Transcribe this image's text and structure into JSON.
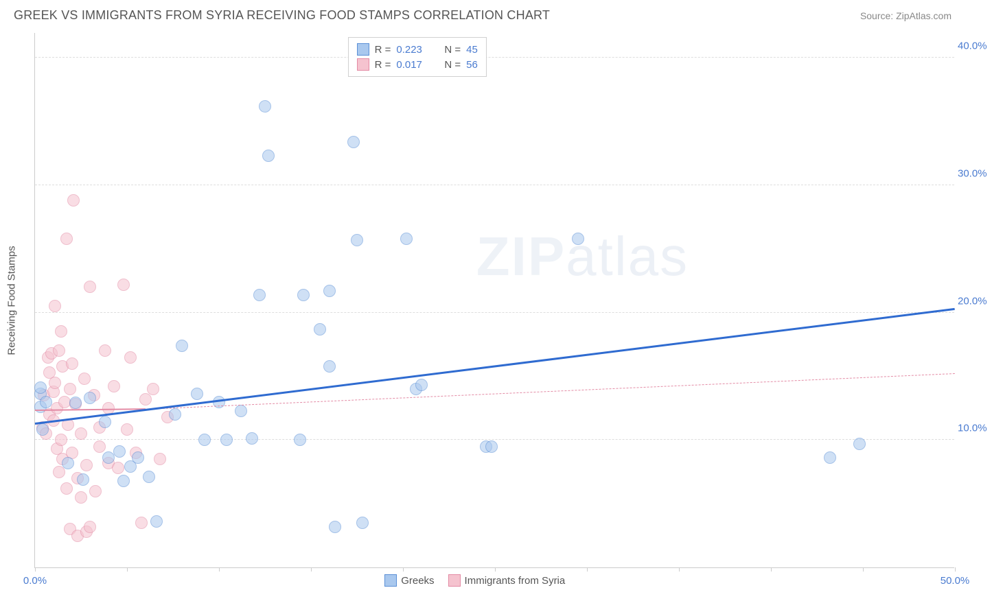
{
  "header": {
    "title": "GREEK VS IMMIGRANTS FROM SYRIA RECEIVING FOOD STAMPS CORRELATION CHART",
    "source_prefix": "Source: ",
    "source_name": "ZipAtlas.com"
  },
  "watermark": {
    "zip": "ZIP",
    "atlas": "atlas"
  },
  "chart": {
    "type": "scatter",
    "xlim": [
      0,
      50
    ],
    "ylim": [
      0,
      42
    ],
    "xtick_positions": [
      0,
      5,
      10,
      15,
      20,
      25,
      30,
      35,
      40,
      45,
      50
    ],
    "xtick_labels": {
      "0": "0.0%",
      "50": "50.0%"
    },
    "ytick_positions": [
      10,
      20,
      30,
      40
    ],
    "ytick_labels": {
      "10": "10.0%",
      "20": "20.0%",
      "30": "30.0%",
      "40": "40.0%"
    },
    "ylabel": "Receiving Food Stamps",
    "background_color": "#ffffff",
    "grid_color": "#dddddd",
    "axis_color": "#cccccc",
    "xtick_label_color": "#4a7bd0",
    "ytick_label_color": "#4a7bd0",
    "marker_radius": 9,
    "marker_opacity": 0.55,
    "series": [
      {
        "name": "Greeks",
        "color_fill": "#a9c8ee",
        "color_stroke": "#5a8fd6",
        "R": "0.223",
        "N": "45",
        "trend": {
          "x1": 0,
          "y1": 11.2,
          "x2": 50,
          "y2": 20.2,
          "width": 3,
          "dash": false,
          "color": "#2f6bd0",
          "extrap": {
            "x1": 50,
            "y1": 20.2,
            "x2": 50,
            "y2": 20.2
          }
        },
        "points": [
          [
            0.3,
            13.6
          ],
          [
            0.3,
            14.1
          ],
          [
            0.3,
            12.6
          ],
          [
            0.4,
            10.8
          ],
          [
            0.6,
            13.0
          ],
          [
            1.8,
            8.2
          ],
          [
            2.2,
            12.9
          ],
          [
            2.6,
            6.9
          ],
          [
            3.0,
            13.3
          ],
          [
            3.8,
            11.4
          ],
          [
            4.0,
            8.6
          ],
          [
            4.6,
            9.1
          ],
          [
            4.8,
            6.8
          ],
          [
            5.2,
            7.9
          ],
          [
            5.6,
            8.6
          ],
          [
            6.2,
            7.1
          ],
          [
            6.6,
            3.6
          ],
          [
            7.6,
            12.0
          ],
          [
            8.0,
            17.4
          ],
          [
            8.8,
            13.6
          ],
          [
            9.2,
            10.0
          ],
          [
            10.0,
            13.0
          ],
          [
            10.4,
            10.0
          ],
          [
            11.2,
            12.3
          ],
          [
            11.8,
            10.1
          ],
          [
            12.2,
            21.4
          ],
          [
            12.5,
            36.2
          ],
          [
            12.7,
            32.3
          ],
          [
            14.4,
            10.0
          ],
          [
            14.6,
            21.4
          ],
          [
            15.5,
            18.7
          ],
          [
            16.0,
            21.7
          ],
          [
            16.0,
            15.8
          ],
          [
            16.3,
            3.2
          ],
          [
            17.3,
            33.4
          ],
          [
            17.5,
            25.7
          ],
          [
            17.8,
            3.5
          ],
          [
            20.2,
            25.8
          ],
          [
            20.7,
            14.0
          ],
          [
            21.0,
            14.3
          ],
          [
            24.5,
            9.5
          ],
          [
            24.8,
            9.5
          ],
          [
            29.5,
            25.8
          ],
          [
            43.2,
            8.6
          ],
          [
            44.8,
            9.7
          ]
        ]
      },
      {
        "name": "Immigrants from Syria",
        "color_fill": "#f5c3cf",
        "color_stroke": "#e38aa4",
        "R": "0.017",
        "N": "56",
        "trend": {
          "x1": 0,
          "y1": 12.3,
          "x2": 6,
          "y2": 12.4,
          "width": 2,
          "dash": false,
          "color": "#e38aa4",
          "extrap": {
            "x1": 6,
            "y1": 12.4,
            "x2": 50,
            "y2": 15.2,
            "dash": true
          }
        },
        "points": [
          [
            0.4,
            11.0
          ],
          [
            0.5,
            13.5
          ],
          [
            0.6,
            10.5
          ],
          [
            0.7,
            16.5
          ],
          [
            0.8,
            12.0
          ],
          [
            0.8,
            15.3
          ],
          [
            0.9,
            16.8
          ],
          [
            1.0,
            13.8
          ],
          [
            1.0,
            11.5
          ],
          [
            1.1,
            14.5
          ],
          [
            1.1,
            20.5
          ],
          [
            1.2,
            9.3
          ],
          [
            1.2,
            12.5
          ],
          [
            1.3,
            17.0
          ],
          [
            1.3,
            7.5
          ],
          [
            1.4,
            18.5
          ],
          [
            1.4,
            10.0
          ],
          [
            1.5,
            15.8
          ],
          [
            1.5,
            8.5
          ],
          [
            1.6,
            13.0
          ],
          [
            1.7,
            25.8
          ],
          [
            1.7,
            6.2
          ],
          [
            1.8,
            11.2
          ],
          [
            1.9,
            14.0
          ],
          [
            1.9,
            3.0
          ],
          [
            2.0,
            9.0
          ],
          [
            2.0,
            16.0
          ],
          [
            2.1,
            28.8
          ],
          [
            2.2,
            12.8
          ],
          [
            2.3,
            7.0
          ],
          [
            2.3,
            2.5
          ],
          [
            2.5,
            10.5
          ],
          [
            2.5,
            5.5
          ],
          [
            2.7,
            14.8
          ],
          [
            2.8,
            2.8
          ],
          [
            2.8,
            8.0
          ],
          [
            3.0,
            22.0
          ],
          [
            3.0,
            3.2
          ],
          [
            3.2,
            13.5
          ],
          [
            3.3,
            6.0
          ],
          [
            3.5,
            11.0
          ],
          [
            3.5,
            9.5
          ],
          [
            3.8,
            17.0
          ],
          [
            4.0,
            8.2
          ],
          [
            4.0,
            12.5
          ],
          [
            4.3,
            14.2
          ],
          [
            4.5,
            7.8
          ],
          [
            4.8,
            22.2
          ],
          [
            5.0,
            10.8
          ],
          [
            5.2,
            16.5
          ],
          [
            5.5,
            9.0
          ],
          [
            5.8,
            3.5
          ],
          [
            6.0,
            13.2
          ],
          [
            6.4,
            14.0
          ],
          [
            6.8,
            8.5
          ],
          [
            7.2,
            11.8
          ]
        ]
      }
    ]
  },
  "legend_top": {
    "R_label": "R =",
    "N_label": "N =",
    "value_color": "#4a7bd0",
    "label_color": "#555555"
  },
  "legend_bottom": {
    "items": [
      {
        "label": "Greeks",
        "fill": "#a9c8ee",
        "stroke": "#5a8fd6"
      },
      {
        "label": "Immigrants from Syria",
        "fill": "#f5c3cf",
        "stroke": "#e38aa4"
      }
    ]
  }
}
